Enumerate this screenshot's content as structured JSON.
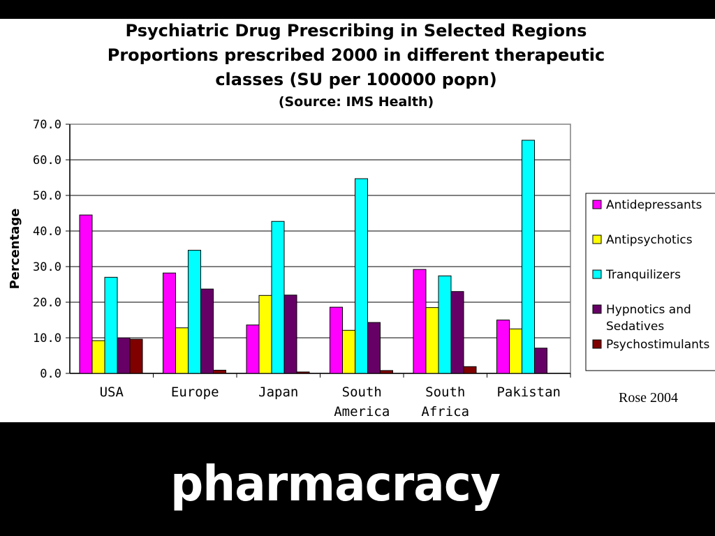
{
  "chart_data": {
    "type": "bar",
    "title_lines": [
      "Psychiatric Drug Prescribing in Selected Regions",
      "Proportions prescribed 2000 in different therapeutic",
      "classes (SU per 100000 popn)"
    ],
    "subtitle": "(Source: IMS Health)",
    "xlabel": "",
    "ylabel": "Percentage",
    "ylim": [
      0,
      70
    ],
    "yticks": [
      "0.0",
      "10.0",
      "20.0",
      "30.0",
      "40.0",
      "50.0",
      "60.0",
      "70.0"
    ],
    "grid": true,
    "legend_position": "right",
    "categories": [
      [
        "USA"
      ],
      [
        "Europe"
      ],
      [
        "Japan"
      ],
      [
        "South",
        "America"
      ],
      [
        "South",
        "Africa"
      ],
      [
        "Pakistan"
      ]
    ],
    "series": [
      {
        "name": "Antidepressants",
        "color": "#ff00ff",
        "values": [
          44.5,
          28.2,
          13.6,
          18.6,
          29.2,
          15.0
        ]
      },
      {
        "name": "Antipsychotics",
        "color": "#ffff00",
        "values": [
          9.2,
          12.8,
          21.9,
          12.1,
          18.5,
          12.5
        ]
      },
      {
        "name": "Tranquilizers",
        "color": "#00ffff",
        "values": [
          27.0,
          34.6,
          42.7,
          54.7,
          27.4,
          65.5
        ]
      },
      {
        "name": "Hypnotics and Sedatives",
        "color": "#660066",
        "values": [
          10.0,
          23.7,
          22.0,
          14.3,
          23.0,
          7.1
        ]
      },
      {
        "name": "Psychostimulants",
        "color": "#800000",
        "values": [
          9.6,
          0.9,
          0.4,
          0.8,
          1.9,
          0
        ]
      }
    ]
  },
  "credit": "Rose 2004",
  "footer": "pharmacracy"
}
